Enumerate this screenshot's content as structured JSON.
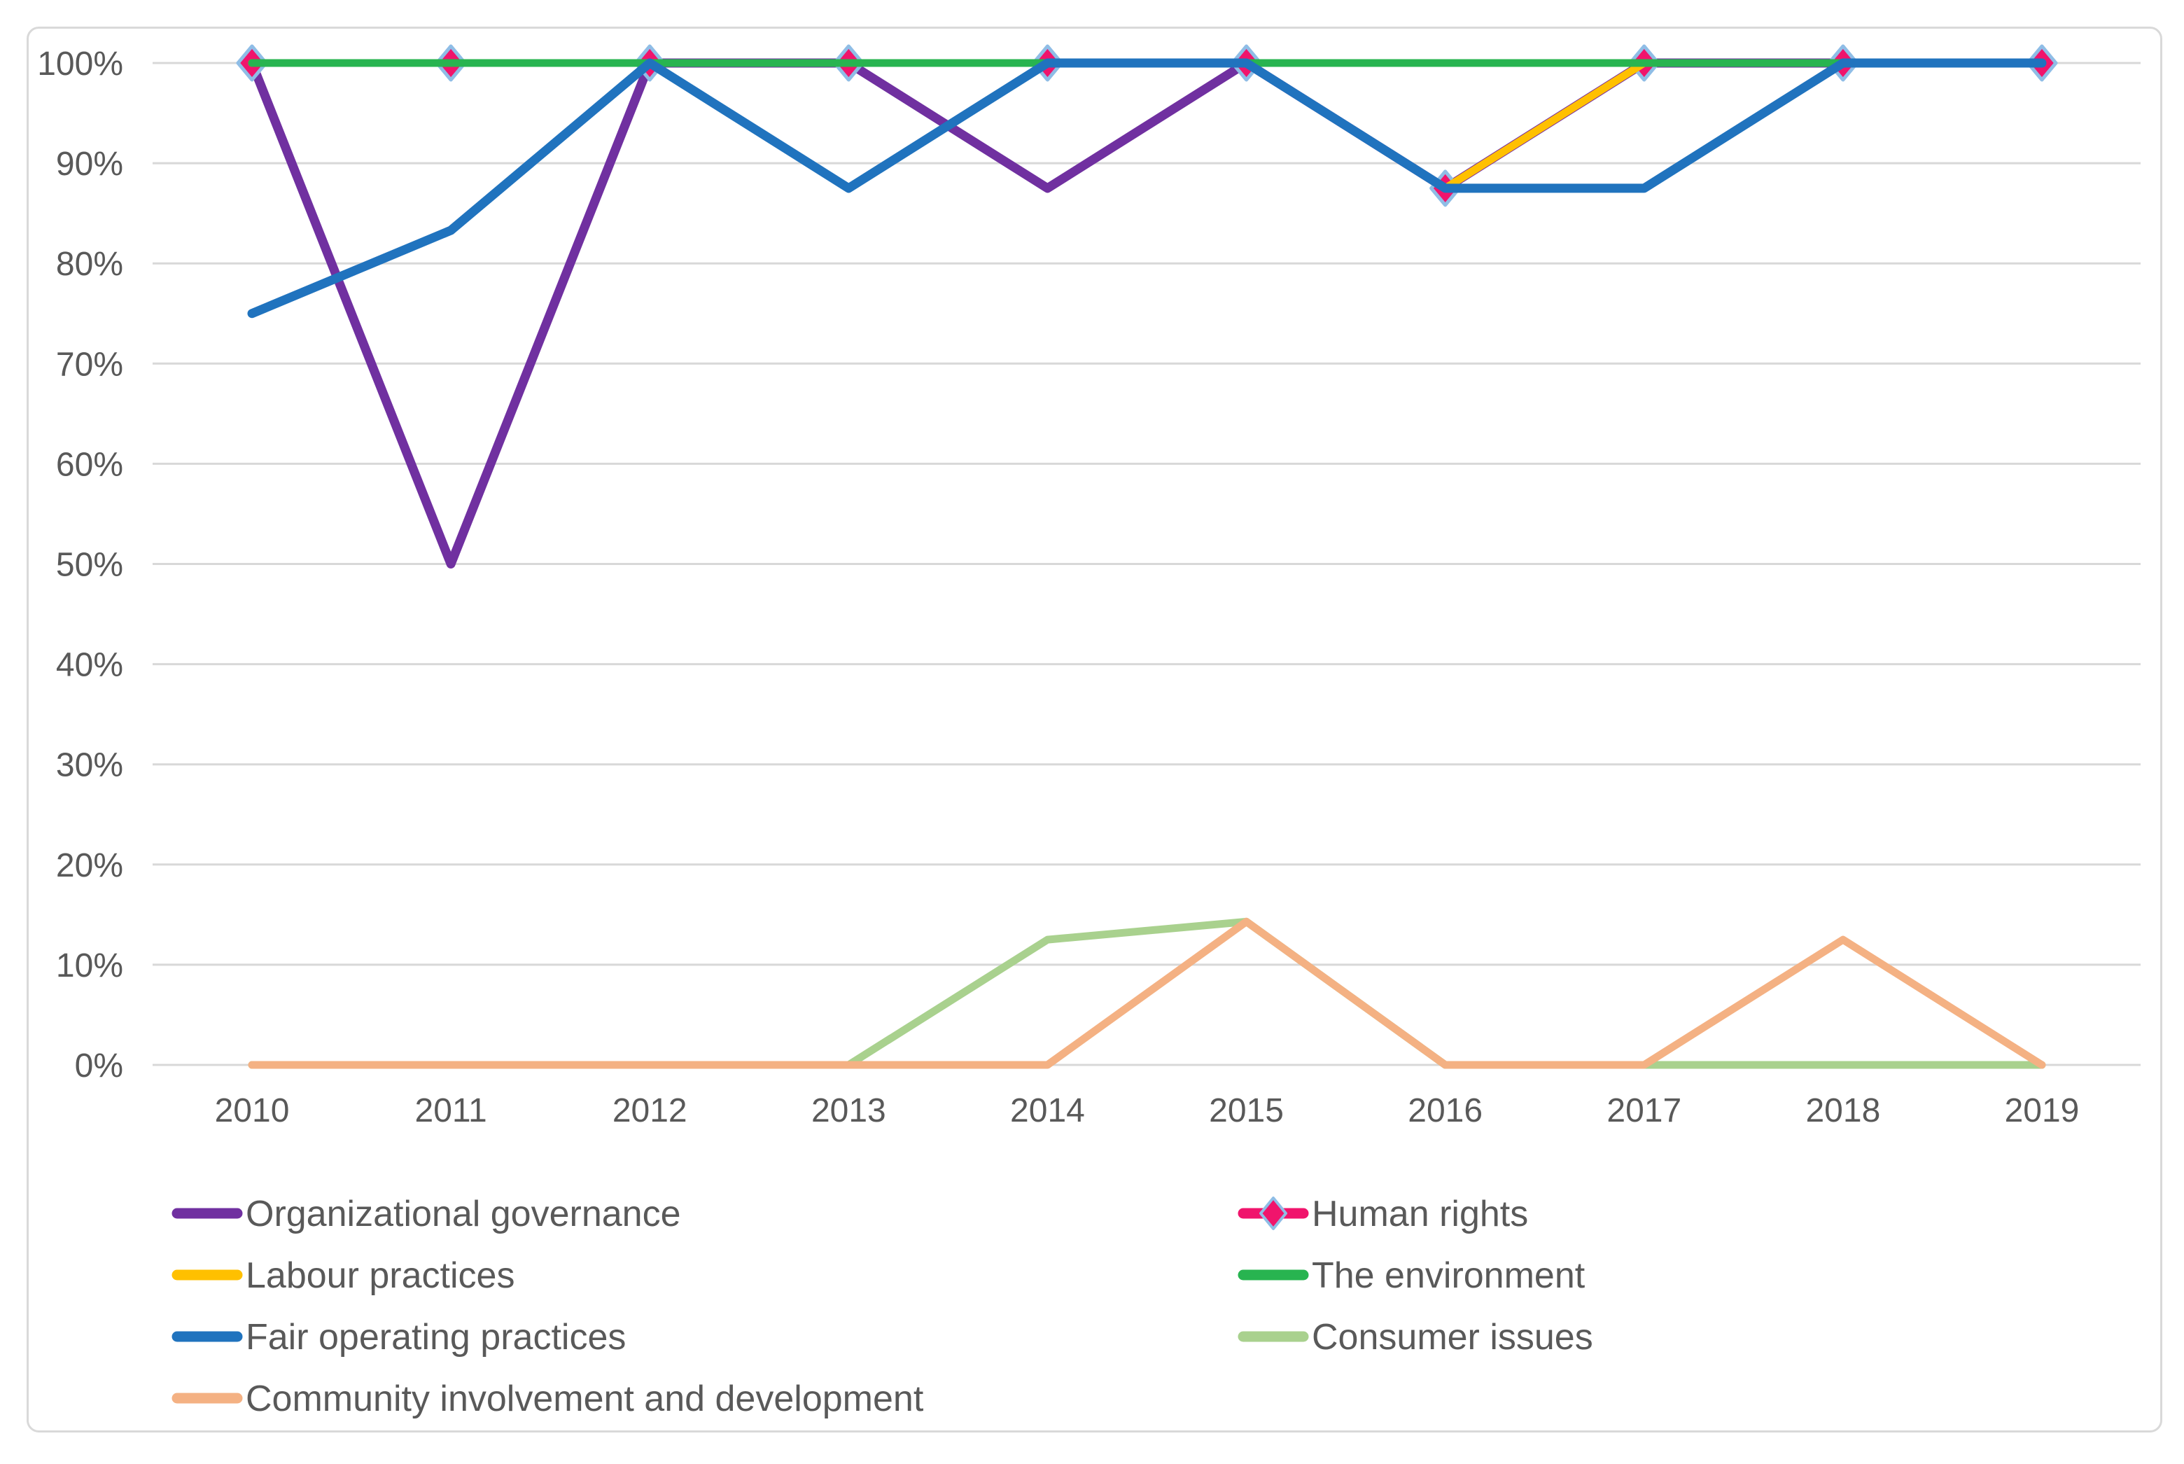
{
  "page": {
    "background": "#FFFFFF",
    "frame_color": "#D9D9D9",
    "text_color": "#595959",
    "gridline_color": "#D8D8D8"
  },
  "chart_data": {
    "type": "line",
    "title": "",
    "xlabel": "",
    "ylabel": "",
    "categories": [
      "2010",
      "2011",
      "2012",
      "2013",
      "2014",
      "2015",
      "2016",
      "2017",
      "2018",
      "2019"
    ],
    "ylim": [
      0,
      100
    ],
    "y_tick_step": 10,
    "y_tick_labels": [
      "0%",
      "10%",
      "20%",
      "30%",
      "40%",
      "50%",
      "60%",
      "70%",
      "80%",
      "90%",
      "100%"
    ],
    "grid": "horizontal",
    "legend_position": "bottom",
    "series": [
      {
        "name": "Organizational governance",
        "color": "#7030A0",
        "line_width": 13,
        "values": [
          100,
          50,
          100,
          100,
          87.5,
          100,
          87.5,
          100,
          100,
          100
        ]
      },
      {
        "name": "Human rights",
        "color": "#F0146C",
        "line_width": 11,
        "marker": {
          "shape": "diamond",
          "fill": "#F0146C",
          "stroke": "#8FBDE6"
        },
        "values": [
          100,
          100,
          100,
          100,
          100,
          100,
          87.5,
          100,
          100,
          100
        ]
      },
      {
        "name": "Labour practices",
        "color": "#FFC000",
        "line_width": 11,
        "values": [
          100,
          100,
          100,
          100,
          100,
          100,
          87.5,
          100,
          100,
          100
        ]
      },
      {
        "name": "The environment",
        "color": "#28B450",
        "line_width": 11,
        "values": [
          100,
          100,
          100,
          100,
          100,
          100,
          100,
          100,
          100,
          100
        ]
      },
      {
        "name": "Fair operating practices",
        "color": "#2073BE",
        "line_width": 13,
        "values": [
          75,
          83.3,
          100,
          87.5,
          100,
          100,
          87.5,
          87.5,
          100,
          100
        ]
      },
      {
        "name": "Consumer issues",
        "color": "#A9D18E",
        "line_width": 11,
        "values": [
          0,
          0,
          0,
          0,
          12.5,
          14.3,
          0,
          0,
          0,
          0
        ]
      },
      {
        "name": "Community involvement and development",
        "color": "#F4B183",
        "line_width": 11,
        "values": [
          0,
          0,
          0,
          0,
          0,
          14.3,
          0,
          0,
          12.5,
          0
        ]
      }
    ],
    "legend_columns": [
      [
        "Organizational governance",
        "Labour practices",
        "Fair operating practices",
        "Community involvement and development"
      ],
      [
        "Human rights",
        "The environment",
        "Consumer issues"
      ]
    ]
  }
}
